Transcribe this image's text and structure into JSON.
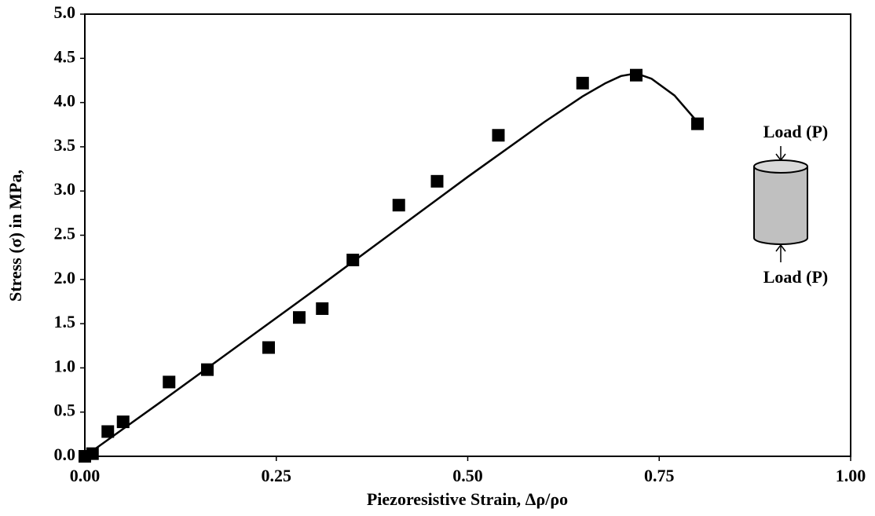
{
  "chart_data": {
    "type": "scatter",
    "x_label": "Piezoresistive Strain,  Δρ/ρo",
    "y_label": "Stress (σ) in MPa,",
    "annotations": [
      "Load (P)",
      "Load (P)"
    ],
    "xlim": [
      0,
      1
    ],
    "ylim": [
      0,
      5
    ],
    "xticks": [
      {
        "value": 0,
        "label": "0.00"
      },
      {
        "value": 0.25,
        "label": "0.25"
      },
      {
        "value": 0.5,
        "label": "0.50"
      },
      {
        "value": 0.75,
        "label": "0.75"
      },
      {
        "value": 1,
        "label": "1.00"
      }
    ],
    "yticks": [
      {
        "value": 0,
        "label": "0.0"
      },
      0.5,
      {
        "value": 1,
        "label": "1.0"
      },
      1.5,
      {
        "value": 2,
        "label": "2.0"
      },
      2.5,
      {
        "value": 3,
        "label": "3.0"
      },
      3.5,
      {
        "value": 4,
        "label": "4.0"
      },
      4.5,
      {
        "value": 5,
        "label": "5.0"
      }
    ],
    "series": [
      {
        "type": "scatter",
        "color": "#000000",
        "x": [
          0,
          0.01,
          0.03,
          0.05,
          0.11,
          0.16,
          0.24,
          0.28,
          0.31,
          0.35,
          0.41,
          0.46,
          0.54,
          0.65,
          0.72,
          0.8
        ],
        "values": [
          0,
          0.03,
          0.28,
          0.39,
          0.84,
          0.98,
          1.23,
          1.57,
          1.67,
          2.22,
          2.84,
          3.11,
          3.63,
          4.22,
          4.31,
          3.76
        ]
      },
      {
        "type": "line",
        "color": "#000000",
        "x": [
          0,
          0.1,
          0.2,
          0.3,
          0.4,
          0.5,
          0.6,
          0.65,
          0.68,
          0.7,
          0.72,
          0.74,
          0.77,
          0.8
        ],
        "values": [
          0,
          0.62,
          1.25,
          1.88,
          2.52,
          3.16,
          3.78,
          4.07,
          4.22,
          4.3,
          4.33,
          4.27,
          4.08,
          3.78
        ]
      }
    ]
  }
}
